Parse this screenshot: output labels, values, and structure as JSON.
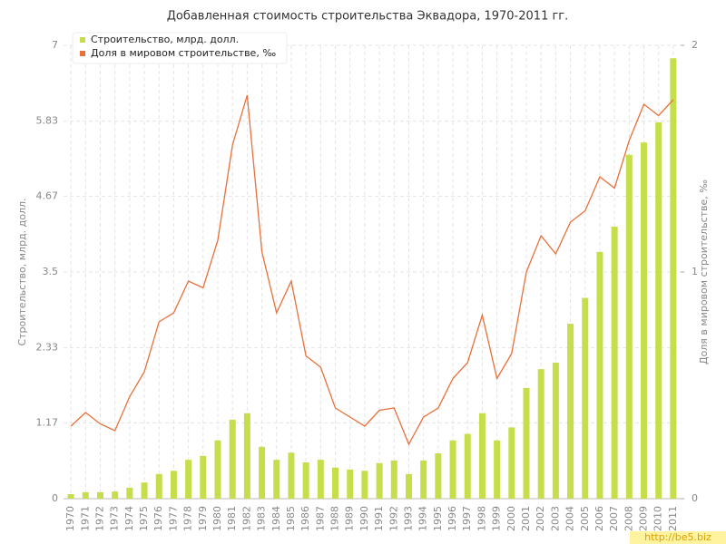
{
  "chart_data": {
    "type": "bar-line",
    "title": "Добавленная стоимость строительства Эквадора, 1970-2011 гг.",
    "y_label": "Строительство, млрд. долл.",
    "y2_label": "Доля в мировом строительстве, ‰",
    "watermark": "http://be5.biz",
    "categories": [
      "1970",
      "1971",
      "1972",
      "1973",
      "1974",
      "1975",
      "1976",
      "1977",
      "1978",
      "1979",
      "1980",
      "1981",
      "1982",
      "1983",
      "1984",
      "1985",
      "1986",
      "1987",
      "1988",
      "1989",
      "1990",
      "1991",
      "1992",
      "1993",
      "1994",
      "1995",
      "1996",
      "1997",
      "1998",
      "1999",
      "2000",
      "2001",
      "2002",
      "2003",
      "2004",
      "2005",
      "2006",
      "2007",
      "2008",
      "2009",
      "2010",
      "2011"
    ],
    "series": [
      {
        "name": "Строительство, млрд. долл.",
        "color": "#c4de4c",
        "kind": "bar",
        "values": [
          0.07,
          0.1,
          0.1,
          0.11,
          0.17,
          0.25,
          0.38,
          0.43,
          0.6,
          0.66,
          0.9,
          1.22,
          1.32,
          0.8,
          0.6,
          0.71,
          0.56,
          0.6,
          0.48,
          0.45,
          0.43,
          0.55,
          0.59,
          0.38,
          0.59,
          0.7,
          0.9,
          1.0,
          1.32,
          0.9,
          1.1,
          1.71,
          2.0,
          2.1,
          2.7,
          3.1,
          3.81,
          4.2,
          5.31,
          5.5,
          5.81,
          6.8
        ]
      },
      {
        "name": "Доля в мировом строительстве, ‰",
        "color": "#e8703a",
        "kind": "line",
        "axis": "y2",
        "values": [
          0.32,
          0.38,
          0.33,
          0.3,
          0.45,
          0.56,
          0.78,
          0.82,
          0.96,
          0.93,
          1.14,
          1.56,
          1.78,
          1.09,
          0.82,
          0.96,
          0.63,
          0.58,
          0.4,
          0.36,
          0.32,
          0.39,
          0.4,
          0.24,
          0.36,
          0.4,
          0.53,
          0.6,
          0.81,
          0.53,
          0.64,
          1.0,
          1.16,
          1.08,
          1.22,
          1.27,
          1.42,
          1.37,
          1.58,
          1.74,
          1.69,
          1.76
        ]
      }
    ],
    "ylim": [
      0,
      7
    ],
    "yticks": [
      0,
      1.17,
      2.33,
      3.5,
      4.67,
      5.83,
      7
    ],
    "y2lim": [
      0,
      2
    ],
    "y2ticks": [
      0,
      1,
      2
    ],
    "grid": true,
    "legend": "top-left"
  }
}
